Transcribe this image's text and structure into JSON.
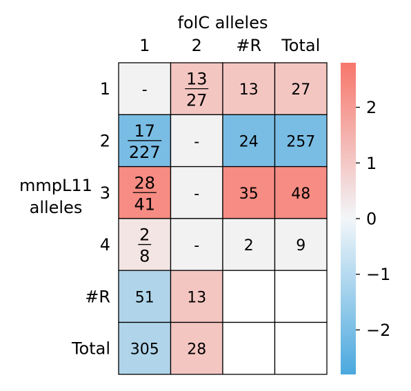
{
  "chart_data": {
    "type": "heatmap",
    "title": "folC alleles",
    "xlabel": "folC alleles",
    "ylabel": "mmpL11 alleles",
    "x_categories": [
      "1",
      "2",
      "#R",
      "Total"
    ],
    "y_categories": [
      "1",
      "2",
      "3",
      "4",
      "#R",
      "Total"
    ],
    "cells": [
      [
        {
          "label": "-",
          "value": 0
        },
        {
          "label": "13/27",
          "value": 1
        },
        {
          "label": "13",
          "value": 1
        },
        {
          "label": "27",
          "value": 1
        }
      ],
      [
        {
          "label": "17/227",
          "value": -2
        },
        {
          "label": "-",
          "value": 0
        },
        {
          "label": "24",
          "value": -2
        },
        {
          "label": "257",
          "value": -2
        }
      ],
      [
        {
          "label": "28/41",
          "value": 2.3
        },
        {
          "label": "-",
          "value": 0
        },
        {
          "label": "35",
          "value": 2.3
        },
        {
          "label": "48",
          "value": 2.3
        }
      ],
      [
        {
          "label": "2/8",
          "value": 0.3
        },
        {
          "label": "-",
          "value": 0
        },
        {
          "label": "2",
          "value": 0
        },
        {
          "label": "9",
          "value": 0
        }
      ],
      [
        {
          "label": "51",
          "value": -1.1
        },
        {
          "label": "13",
          "value": 1
        },
        {
          "label": "",
          "value": null
        },
        {
          "label": "",
          "value": null
        }
      ],
      [
        {
          "label": "305",
          "value": -1.1
        },
        {
          "label": "28",
          "value": 1
        },
        {
          "label": "",
          "value": null
        },
        {
          "label": "",
          "value": null
        }
      ]
    ],
    "colorbar": {
      "range": [
        -2.8,
        2.8
      ],
      "ticks": [
        2,
        1,
        0,
        -1,
        -2
      ],
      "tick_labels": [
        "2",
        "1",
        "0",
        "−1",
        "−2"
      ],
      "colors": {
        "neg": "#4aa8de",
        "mid": "#f2f2f2",
        "pos": "#f7766b"
      }
    },
    "grid": true,
    "legend": "colorbar-right"
  }
}
